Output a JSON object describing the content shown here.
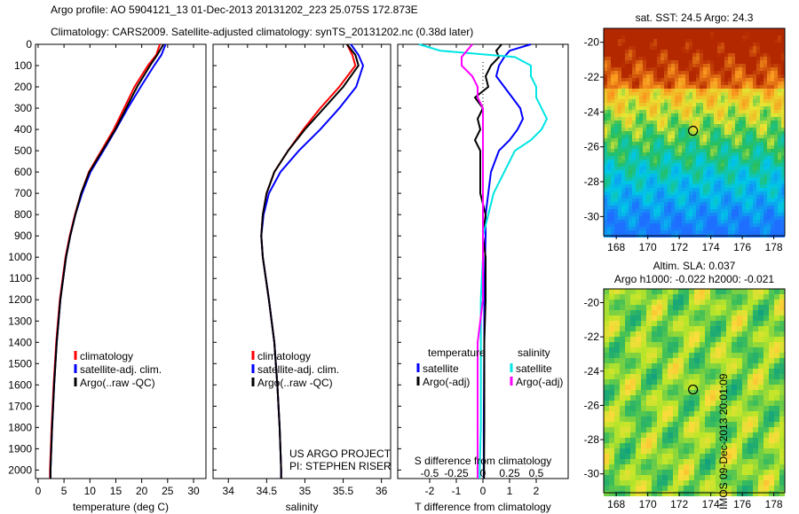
{
  "title": {
    "line1": "Argo profile: AO 5904121_13 01-Dec-2013 20131202_223 25.075S 172.873E",
    "line2": "Climatology: CARS2009. Satellite-adjusted climatology: synTS_20131202.nc (0.38d later)"
  },
  "colors": {
    "climatology": "#ff0000",
    "satellite": "#0000ff",
    "argo": "#000000",
    "sal_satellite": "#00e5e5",
    "sal_argo": "#ff00ff"
  },
  "chart_data": [
    {
      "type": "line",
      "name": "temperature",
      "xlabel": "temperature (deg C)",
      "xlim": [
        -0.5,
        32.4
      ],
      "ylim": [
        2040,
        0
      ],
      "xticks": [
        0,
        5,
        10,
        15,
        20,
        25,
        30
      ],
      "yticks": [
        0,
        100,
        200,
        300,
        400,
        500,
        600,
        700,
        800,
        900,
        1000,
        1100,
        1200,
        1300,
        1400,
        1500,
        1600,
        1700,
        1800,
        1900,
        2000
      ],
      "depth": [
        0,
        50,
        100,
        200,
        300,
        400,
        500,
        600,
        700,
        800,
        900,
        1000,
        1200,
        1400,
        1600,
        1800,
        2000,
        2040
      ],
      "series": [
        {
          "name": "climatology",
          "color": "#ff0000",
          "values": [
            23.5,
            22.8,
            21.2,
            18.6,
            16.6,
            14.6,
            12.2,
            9.8,
            8.3,
            7.1,
            6.1,
            5.3,
            4.2,
            3.5,
            3.0,
            2.6,
            2.3,
            2.3
          ]
        },
        {
          "name": "satellite-adj. clim.",
          "color": "#0000ff",
          "values": [
            24.6,
            23.8,
            22.4,
            19.8,
            17.3,
            15.0,
            12.6,
            10.1,
            8.5,
            7.2,
            6.2,
            5.4,
            4.3,
            3.6,
            3.1,
            2.7,
            2.4,
            2.4
          ]
        },
        {
          "name": "Argo(..raw -QC)",
          "color": "#000000",
          "values": [
            24.2,
            23.0,
            21.6,
            19.1,
            17.0,
            14.9,
            12.4,
            9.9,
            8.3,
            7.2,
            6.2,
            5.4,
            4.3,
            3.6,
            3.1,
            2.7,
            2.4,
            2.4
          ]
        }
      ],
      "legend": [
        "climatology",
        "satellite-adj. clim.",
        "Argo(..raw -QC)"
      ]
    },
    {
      "type": "line",
      "name": "salinity",
      "xlabel": "salinity",
      "xlim": [
        33.8,
        36.12
      ],
      "ylim": [
        2040,
        0
      ],
      "xticks": [
        34,
        34.5,
        35,
        35.5,
        36
      ],
      "depth": [
        0,
        50,
        100,
        200,
        300,
        400,
        500,
        600,
        700,
        800,
        900,
        1000,
        1200,
        1400,
        1600,
        1800,
        2000,
        2040
      ],
      "series": [
        {
          "name": "climatology",
          "color": "#ff0000",
          "values": [
            35.55,
            35.62,
            35.66,
            35.45,
            35.2,
            34.98,
            34.78,
            34.6,
            34.5,
            34.45,
            34.43,
            34.45,
            34.53,
            34.6,
            34.64,
            34.67,
            34.69,
            34.69
          ]
        },
        {
          "name": "satellite-adj. clim.",
          "color": "#0000ff",
          "values": [
            35.6,
            35.7,
            35.76,
            35.67,
            35.45,
            35.2,
            34.92,
            34.68,
            34.53,
            34.46,
            34.43,
            34.45,
            34.53,
            34.6,
            34.64,
            34.67,
            34.69,
            34.69
          ]
        },
        {
          "name": "Argo(..raw -QC)",
          "color": "#000000",
          "values": [
            35.55,
            35.66,
            35.7,
            35.5,
            35.25,
            35.0,
            34.78,
            34.6,
            34.5,
            34.45,
            34.43,
            34.45,
            34.53,
            34.6,
            34.64,
            34.67,
            34.69,
            34.69
          ]
        }
      ],
      "legend": [
        "climatology",
        "satellite-adj. clim.",
        "Argo(..raw -QC)"
      ],
      "annotation": [
        "US ARGO PROJECT",
        "PI: STEPHEN RISER"
      ]
    },
    {
      "type": "line",
      "name": "difference",
      "xlabel": "T difference from climatology",
      "x2label": "S difference from climatology",
      "xlim": [
        -3.2,
        3.2
      ],
      "ylim": [
        2040,
        0
      ],
      "xticks": [
        -2,
        -1,
        0,
        1,
        2
      ],
      "x2ticks": [
        "-0.5",
        "-0.25",
        "0",
        "0.25",
        "0.5"
      ],
      "x2values": [
        -0.5,
        -0.25,
        0,
        0.25,
        0.5
      ],
      "depth": [
        0,
        30,
        60,
        100,
        150,
        200,
        250,
        300,
        350,
        400,
        450,
        500,
        600,
        700,
        800,
        900,
        1000,
        1200,
        1400,
        1600,
        1800,
        2000,
        2040
      ],
      "series": [
        {
          "name": "T satellite",
          "color": "#0000ff",
          "values": [
            1.8,
            1.0,
            0.8,
            0.6,
            0.5,
            0.8,
            1.1,
            1.4,
            1.5,
            1.3,
            1.0,
            0.6,
            0.3,
            0.2,
            0.1,
            0.1,
            0.08,
            0.05,
            0.05,
            0.04,
            0.03,
            0.03,
            0.03
          ]
        },
        {
          "name": "T Argo(-adj)",
          "color": "#000000",
          "values": [
            0.7,
            0.5,
            0.6,
            0.3,
            0.1,
            0.2,
            -0.3,
            0.0,
            -0.2,
            -0.1,
            -0.3,
            -0.1,
            -0.1,
            -0.1,
            0.1,
            0.0,
            0.1,
            0.1,
            0.05,
            0.05,
            0.05,
            0.04,
            0.04
          ]
        },
        {
          "name": "S satellite",
          "color": "#00e5e5",
          "values": [
            -0.6,
            -0.4,
            0.3,
            0.45,
            0.45,
            0.5,
            0.5,
            0.55,
            0.6,
            0.55,
            0.45,
            0.3,
            0.2,
            0.1,
            0.05,
            0.0,
            0.0,
            -0.02,
            -0.02,
            -0.02,
            -0.02,
            -0.03,
            -0.03
          ]
        },
        {
          "name": "S Argo(-adj)",
          "color": "#ff00ff",
          "values": [
            -0.1,
            -0.15,
            -0.2,
            -0.2,
            -0.1,
            -0.05,
            -0.05,
            0.0,
            0.0,
            0.0,
            0.0,
            0.0,
            0.0,
            0.0,
            0.0,
            0.0,
            0.0,
            0.0,
            -0.05,
            -0.05,
            -0.05,
            -0.05,
            -0.05
          ]
        }
      ],
      "legend_t_title": "temperature",
      "legend_s_title": "salinity",
      "legend_t": [
        "satellite",
        "Argo(-adj)"
      ],
      "legend_s": [
        "satellite",
        "Argo(-adj)"
      ]
    },
    {
      "type": "heatmap",
      "name": "sst-map",
      "title": "sat. SST: 24.5 Argo: 24.3",
      "lon_ticks": [
        168,
        170,
        172,
        174,
        176,
        178
      ],
      "lat_ticks": [
        -20,
        -22,
        -24,
        -26,
        -28,
        -30
      ],
      "xlim": [
        167.2,
        178.7
      ],
      "ylim": [
        -31.1,
        -19.2
      ],
      "marker": [
        172.873,
        -25.075
      ]
    },
    {
      "type": "heatmap",
      "name": "sla-map",
      "title": "Altim. SLA: 0.037",
      "subtitle": "Argo h1000: -0.022 h2000: -0.021",
      "lon_ticks": [
        168,
        170,
        172,
        174,
        176,
        178
      ],
      "lat_ticks": [
        -20,
        -22,
        -24,
        -26,
        -28,
        -30
      ],
      "xlim": [
        167.2,
        178.7
      ],
      "ylim": [
        -31.1,
        -19.2
      ],
      "marker": [
        172.873,
        -25.075
      ]
    }
  ],
  "stamp": "IMOS 09-Dec-2013 20:01:09"
}
